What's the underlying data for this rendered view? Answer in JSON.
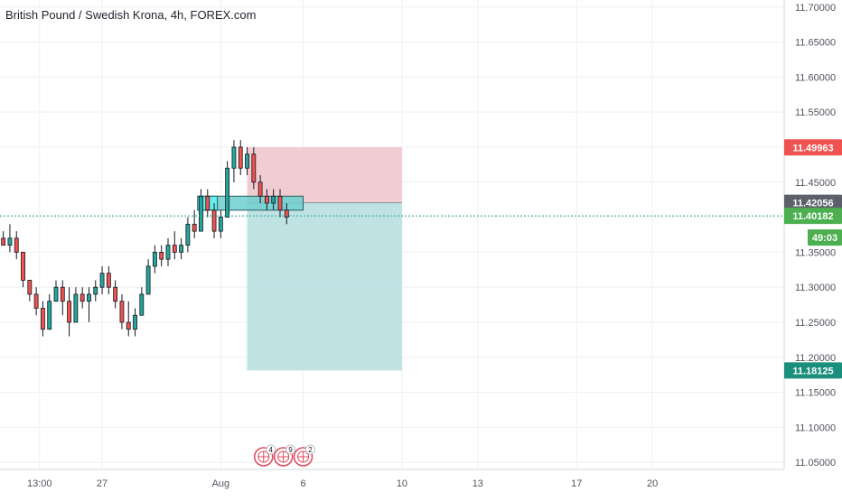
{
  "title": "British Pound / Swedish Krona, 4h, FOREX.com",
  "colors": {
    "up": "#26a69a",
    "down": "#ef5350",
    "candle_border": "#131722",
    "grid": "#eef0f3",
    "axis_text": "#50535e",
    "stop_zone": "#efc6cc",
    "target_zone": "#b8dfe0",
    "entry_box": "#6fcfcf",
    "entry_box_highlight": "#5ff0f5",
    "current_line": "#26a69a",
    "badge_stop": "#ef5350",
    "badge_entry": "#5d606b",
    "badge_current": "#4caf50",
    "badge_target": "#1b8f7e",
    "event_icon": "#e0475b"
  },
  "chart_data": {
    "type": "candlestick",
    "symbol": "British Pound / Swedish Krona",
    "interval": "4h",
    "source": "FOREX.com",
    "y_axis": {
      "ylim": [
        11.04,
        11.71
      ],
      "ticks": [
        "11.70000",
        "11.65000",
        "11.60000",
        "11.55000",
        "11.50000",
        "11.45000",
        "11.40000",
        "11.35000",
        "11.30000",
        "11.25000",
        "11.20000",
        "11.15000",
        "11.10000",
        "11.05000"
      ]
    },
    "x_axis": {
      "xlim": [
        0,
        119
      ],
      "ticks": [
        {
          "label": "13:00",
          "x": 6
        },
        {
          "label": "27",
          "x": 15.5
        },
        {
          "label": "Aug",
          "x": 33.5
        },
        {
          "label": "6",
          "x": 46
        },
        {
          "label": "10",
          "x": 61
        },
        {
          "label": "13",
          "x": 72.5
        },
        {
          "label": "17",
          "x": 87.5
        },
        {
          "label": "20",
          "x": 99
        }
      ]
    },
    "candles": [
      [
        11.37,
        11.38,
        11.36,
        11.36
      ],
      [
        11.36,
        11.39,
        11.35,
        11.37
      ],
      [
        11.37,
        11.38,
        11.34,
        11.35
      ],
      [
        11.35,
        11.35,
        11.3,
        11.31
      ],
      [
        11.31,
        11.31,
        11.28,
        11.29
      ],
      [
        11.29,
        11.3,
        11.26,
        11.27
      ],
      [
        11.27,
        11.28,
        11.23,
        11.24
      ],
      [
        11.24,
        11.29,
        11.24,
        11.28
      ],
      [
        11.28,
        11.31,
        11.28,
        11.3
      ],
      [
        11.3,
        11.31,
        11.26,
        11.28
      ],
      [
        11.28,
        11.3,
        11.23,
        11.25
      ],
      [
        11.25,
        11.3,
        11.25,
        11.29
      ],
      [
        11.29,
        11.3,
        11.27,
        11.28
      ],
      [
        11.28,
        11.3,
        11.25,
        11.29
      ],
      [
        11.29,
        11.31,
        11.28,
        11.3
      ],
      [
        11.3,
        11.33,
        11.29,
        11.32
      ],
      [
        11.32,
        11.33,
        11.29,
        11.3
      ],
      [
        11.3,
        11.31,
        11.27,
        11.28
      ],
      [
        11.28,
        11.29,
        11.24,
        11.25
      ],
      [
        11.25,
        11.28,
        11.23,
        11.24
      ],
      [
        11.24,
        11.27,
        11.23,
        11.26
      ],
      [
        11.26,
        11.3,
        11.26,
        11.29
      ],
      [
        11.29,
        11.34,
        11.29,
        11.33
      ],
      [
        11.33,
        11.36,
        11.32,
        11.35
      ],
      [
        11.35,
        11.36,
        11.33,
        11.34
      ],
      [
        11.34,
        11.37,
        11.33,
        11.36
      ],
      [
        11.36,
        11.38,
        11.34,
        11.35
      ],
      [
        11.35,
        11.37,
        11.34,
        11.36
      ],
      [
        11.36,
        11.4,
        11.35,
        11.39
      ],
      [
        11.39,
        11.41,
        11.37,
        11.38
      ],
      [
        11.38,
        11.44,
        11.38,
        11.43
      ],
      [
        11.43,
        11.44,
        11.4,
        11.41
      ],
      [
        11.41,
        11.42,
        11.37,
        11.38
      ],
      [
        11.38,
        11.41,
        11.37,
        11.4
      ],
      [
        11.4,
        11.48,
        11.4,
        11.47
      ],
      [
        11.47,
        11.51,
        11.45,
        11.5
      ],
      [
        11.5,
        11.51,
        11.46,
        11.47
      ],
      [
        11.47,
        11.5,
        11.46,
        11.49
      ],
      [
        11.49,
        11.5,
        11.44,
        11.45
      ],
      [
        11.45,
        11.46,
        11.42,
        11.43
      ],
      [
        11.43,
        11.44,
        11.41,
        11.42
      ],
      [
        11.42,
        11.44,
        11.41,
        11.43
      ],
      [
        11.43,
        11.44,
        11.4,
        11.41
      ],
      [
        11.41,
        11.42,
        11.39,
        11.4
      ]
    ],
    "position": {
      "type": "short",
      "stop": 11.49963,
      "entry": 11.42056,
      "target": 11.18125,
      "start_x": 37.5,
      "end_x": 61
    },
    "entry_box": {
      "high": 11.43,
      "low": 11.41,
      "start_x": 30,
      "end_x": 46
    },
    "current_price": 11.40182,
    "countdown": "49:03",
    "price_labels": {
      "stop": "11.49963",
      "entry": "11.42056",
      "current": "11.40182",
      "target": "11.18125"
    },
    "events": [
      {
        "x": 40,
        "count": "4"
      },
      {
        "x": 43,
        "count": "9"
      },
      {
        "x": 46,
        "count": "2"
      }
    ]
  }
}
